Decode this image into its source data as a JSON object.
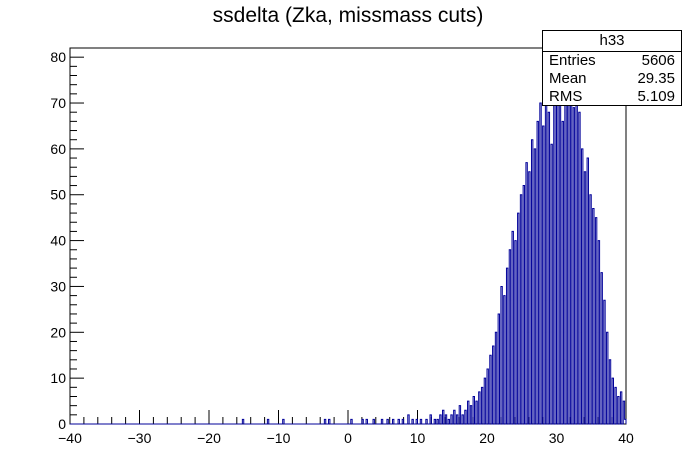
{
  "chart_data": {
    "type": "bar",
    "title": "ssdelta (Zka, missmass cuts)",
    "xlabel": "",
    "ylabel": "",
    "xlim": [
      -40,
      40
    ],
    "ylim": [
      0,
      82
    ],
    "x_ticks": [
      -40,
      -30,
      -20,
      -10,
      0,
      10,
      20,
      30,
      40
    ],
    "y_ticks": [
      0,
      10,
      20,
      30,
      40,
      50,
      60,
      70,
      80
    ],
    "x_tick_labels": [
      "−40",
      "−30",
      "−20",
      "−10",
      "0",
      "10",
      "20",
      "30",
      "40"
    ],
    "y_tick_labels": [
      "0",
      "10",
      "20",
      "30",
      "40",
      "50",
      "60",
      "70",
      "80"
    ],
    "line_color": "#000099",
    "histogram": {
      "bin_low": -40,
      "bin_width": 0.2,
      "nonzero_bins": [
        [
          -15.2,
          1
        ],
        [
          -11.6,
          1
        ],
        [
          -9.4,
          1
        ],
        [
          -3.4,
          1
        ],
        [
          -2.8,
          1
        ],
        [
          0.4,
          1
        ],
        [
          2.0,
          1
        ],
        [
          2.6,
          1
        ],
        [
          3.6,
          1
        ],
        [
          4.8,
          1
        ],
        [
          5.6,
          1
        ],
        [
          6.4,
          1
        ],
        [
          7.2,
          1
        ],
        [
          7.8,
          1
        ],
        [
          8.6,
          2
        ],
        [
          9.2,
          1
        ],
        [
          9.8,
          1
        ],
        [
          10.4,
          1
        ],
        [
          11.2,
          1
        ],
        [
          11.8,
          2
        ],
        [
          12.4,
          1
        ],
        [
          12.8,
          1
        ],
        [
          13.2,
          2
        ],
        [
          13.6,
          3
        ],
        [
          14.0,
          2
        ],
        [
          14.4,
          1
        ],
        [
          14.8,
          2
        ],
        [
          15.2,
          3
        ],
        [
          15.6,
          2
        ],
        [
          16.0,
          4
        ],
        [
          16.4,
          2
        ],
        [
          16.8,
          3
        ],
        [
          17.2,
          5
        ],
        [
          17.6,
          4
        ],
        [
          18.0,
          6
        ],
        [
          18.4,
          5
        ],
        [
          18.8,
          7
        ],
        [
          19.2,
          8
        ],
        [
          19.6,
          10
        ],
        [
          20.0,
          12
        ],
        [
          20.4,
          15
        ],
        [
          20.8,
          17
        ],
        [
          21.2,
          20
        ],
        [
          21.6,
          24
        ],
        [
          22.0,
          30
        ],
        [
          22.4,
          28
        ],
        [
          22.8,
          34
        ],
        [
          23.2,
          38
        ],
        [
          23.6,
          42
        ],
        [
          24.0,
          40
        ],
        [
          24.4,
          46
        ],
        [
          24.8,
          50
        ],
        [
          25.2,
          52
        ],
        [
          25.6,
          57
        ],
        [
          26.0,
          55
        ],
        [
          26.4,
          62
        ],
        [
          26.8,
          60
        ],
        [
          27.2,
          66
        ],
        [
          27.6,
          70
        ],
        [
          28.0,
          65
        ],
        [
          28.4,
          74
        ],
        [
          28.8,
          68
        ],
        [
          29.2,
          61
        ],
        [
          29.6,
          72
        ],
        [
          30.0,
          76
        ],
        [
          30.4,
          70
        ],
        [
          30.8,
          66
        ],
        [
          31.2,
          73
        ],
        [
          31.6,
          75
        ],
        [
          32.0,
          72
        ],
        [
          32.4,
          69
        ],
        [
          32.8,
          74
        ],
        [
          33.2,
          68
        ],
        [
          33.6,
          60
        ],
        [
          34.0,
          55
        ],
        [
          34.4,
          58
        ],
        [
          34.8,
          50
        ],
        [
          35.2,
          47
        ],
        [
          35.6,
          45
        ],
        [
          36.0,
          40
        ],
        [
          36.4,
          33
        ],
        [
          36.8,
          27
        ],
        [
          37.2,
          20
        ],
        [
          37.6,
          14
        ],
        [
          38.0,
          10
        ],
        [
          38.4,
          8
        ],
        [
          38.8,
          6
        ],
        [
          39.2,
          7
        ],
        [
          39.6,
          5
        ],
        [
          39.8,
          1
        ]
      ]
    },
    "stats_box": {
      "name": "h33",
      "entries_label": "Entries",
      "entries": "5606",
      "mean_label": "Mean",
      "mean": "29.35",
      "rms_label": "RMS",
      "rms": "5.109"
    }
  }
}
